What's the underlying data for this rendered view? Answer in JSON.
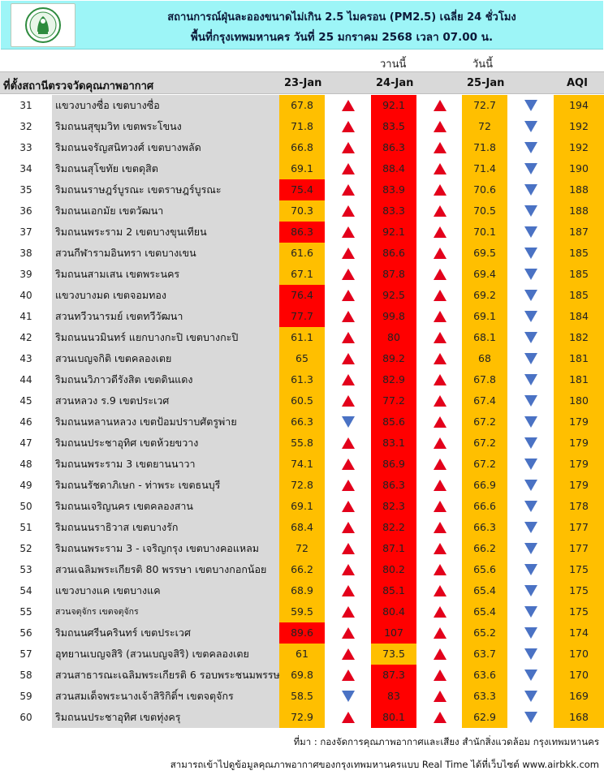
{
  "header": {
    "logo_icon": "city-seal-logo",
    "title_line1": "สถานการณ์ฝุ่นละอองขนาดไม่เกิน 2.5 ไมครอน (PM2.5) เฉลี่ย 24 ชั่วโมง",
    "title_line2": "พื้นที่กรุงเทพมหานคร วันที่ 25 มกราคม 2568 เวลา 07.00 น."
  },
  "day_labels": {
    "yesterday": "วานนี้",
    "today": "วันนี้"
  },
  "columns": {
    "station": "ที่ตั้งสถานีตรวจวัดคุณภาพอากาศ",
    "d23": "23-Jan",
    "d24": "24-Jan",
    "d25": "25-Jan",
    "aqi": "AQI"
  },
  "colors": {
    "header_bg": "#9df5f7",
    "orange": "#ffbf00",
    "red": "#ff0000",
    "up_arrow": "#e3001b",
    "down_arrow": "#4a72c4",
    "name_bg": "#d9d9d9"
  },
  "rows": [
    {
      "no": "31",
      "name": "แขวงบางซื่อ เขตบางซื่อ",
      "v23": "67.8",
      "c23": "orange",
      "a23": "up",
      "v24": "92.1",
      "c24": "red",
      "a24": "up",
      "v25": "72.7",
      "c25": "orange",
      "a25": "down",
      "aqi": "194"
    },
    {
      "no": "32",
      "name": "ริมถนนสุขุมวิท เขตพระโขนง",
      "v23": "71.8",
      "c23": "orange",
      "a23": "up",
      "v24": "83.5",
      "c24": "red",
      "a24": "up",
      "v25": "72",
      "c25": "orange",
      "a25": "down",
      "aqi": "192"
    },
    {
      "no": "33",
      "name": "ริมถนนจรัญสนิทวงศ์ เขตบางพลัด",
      "v23": "66.8",
      "c23": "orange",
      "a23": "up",
      "v24": "86.3",
      "c24": "red",
      "a24": "up",
      "v25": "71.8",
      "c25": "orange",
      "a25": "down",
      "aqi": "192"
    },
    {
      "no": "34",
      "name": "ริมถนนสุโขทัย เขตดุสิต",
      "v23": "69.1",
      "c23": "orange",
      "a23": "up",
      "v24": "88.4",
      "c24": "red",
      "a24": "up",
      "v25": "71.4",
      "c25": "orange",
      "a25": "down",
      "aqi": "190"
    },
    {
      "no": "35",
      "name": "ริมถนนราษฎร์บูรณะ เขตราษฎร์บูรณะ",
      "v23": "75.4",
      "c23": "red",
      "a23": "up",
      "v24": "83.9",
      "c24": "red",
      "a24": "up",
      "v25": "70.6",
      "c25": "orange",
      "a25": "down",
      "aqi": "188"
    },
    {
      "no": "36",
      "name": "ริมถนนเอกมัย เขตวัฒนา",
      "v23": "70.3",
      "c23": "orange",
      "a23": "up",
      "v24": "83.3",
      "c24": "red",
      "a24": "up",
      "v25": "70.5",
      "c25": "orange",
      "a25": "down",
      "aqi": "188"
    },
    {
      "no": "37",
      "name": "ริมถนนพระราม 2 เขตบางขุนเทียน",
      "v23": "86.3",
      "c23": "red",
      "a23": "up",
      "v24": "92.1",
      "c24": "red",
      "a24": "up",
      "v25": "70.1",
      "c25": "orange",
      "a25": "down",
      "aqi": "187"
    },
    {
      "no": "38",
      "name": "สวนกีฬารามอินทรา เขตบางเขน",
      "v23": "61.6",
      "c23": "orange",
      "a23": "up",
      "v24": "86.6",
      "c24": "red",
      "a24": "up",
      "v25": "69.5",
      "c25": "orange",
      "a25": "down",
      "aqi": "185"
    },
    {
      "no": "39",
      "name": "ริมถนนสามเสน เขตพระนคร",
      "v23": "67.1",
      "c23": "orange",
      "a23": "up",
      "v24": "87.8",
      "c24": "red",
      "a24": "up",
      "v25": "69.4",
      "c25": "orange",
      "a25": "down",
      "aqi": "185"
    },
    {
      "no": "40",
      "name": "แขวงบางมด เขตจอมทอง",
      "v23": "76.4",
      "c23": "red",
      "a23": "up",
      "v24": "92.5",
      "c24": "red",
      "a24": "up",
      "v25": "69.2",
      "c25": "orange",
      "a25": "down",
      "aqi": "185"
    },
    {
      "no": "41",
      "name": "สวนทวีวนารมย์ เขตทวีวัฒนา",
      "v23": "77.7",
      "c23": "red",
      "a23": "up",
      "v24": "99.8",
      "c24": "red",
      "a24": "up",
      "v25": "69.1",
      "c25": "orange",
      "a25": "down",
      "aqi": "184"
    },
    {
      "no": "42",
      "name": "ริมถนนนวมินทร์ แยกบางกะปิ เขตบางกะปิ",
      "v23": "61.1",
      "c23": "orange",
      "a23": "up",
      "v24": "80",
      "c24": "red",
      "a24": "up",
      "v25": "68.1",
      "c25": "orange",
      "a25": "down",
      "aqi": "182"
    },
    {
      "no": "43",
      "name": "สวนเบญจกิติ เขตคลองเตย",
      "v23": "65",
      "c23": "orange",
      "a23": "up",
      "v24": "89.2",
      "c24": "red",
      "a24": "up",
      "v25": "68",
      "c25": "orange",
      "a25": "down",
      "aqi": "181"
    },
    {
      "no": "44",
      "name": "ริมถนนวิภาวดีรังสิต เขตดินแดง",
      "v23": "61.3",
      "c23": "orange",
      "a23": "up",
      "v24": "82.9",
      "c24": "red",
      "a24": "up",
      "v25": "67.8",
      "c25": "orange",
      "a25": "down",
      "aqi": "181"
    },
    {
      "no": "45",
      "name": "สวนหลวง ร.9 เขตประเวศ",
      "v23": "60.5",
      "c23": "orange",
      "a23": "up",
      "v24": "77.2",
      "c24": "red",
      "a24": "up",
      "v25": "67.4",
      "c25": "orange",
      "a25": "down",
      "aqi": "180"
    },
    {
      "no": "46",
      "name": "ริมถนนหลานหลวง เขตป้อมปราบศัตรูพ่าย",
      "v23": "66.3",
      "c23": "orange",
      "a23": "down",
      "v24": "85.6",
      "c24": "red",
      "a24": "up",
      "v25": "67.2",
      "c25": "orange",
      "a25": "down",
      "aqi": "179"
    },
    {
      "no": "47",
      "name": "ริมถนนประชาอุทิศ เขตห้วยขวาง",
      "v23": "55.8",
      "c23": "orange",
      "a23": "up",
      "v24": "83.1",
      "c24": "red",
      "a24": "up",
      "v25": "67.2",
      "c25": "orange",
      "a25": "down",
      "aqi": "179"
    },
    {
      "no": "48",
      "name": "ริมถนนพระราม 3 เขตยานนาวา",
      "v23": "74.1",
      "c23": "orange",
      "a23": "up",
      "v24": "86.9",
      "c24": "red",
      "a24": "up",
      "v25": "67.2",
      "c25": "orange",
      "a25": "down",
      "aqi": "179"
    },
    {
      "no": "49",
      "name": "ริมถนนรัชดาภิเษก - ท่าพระ เขตธนบุรี",
      "v23": "72.8",
      "c23": "orange",
      "a23": "up",
      "v24": "86.3",
      "c24": "red",
      "a24": "up",
      "v25": "66.9",
      "c25": "orange",
      "a25": "down",
      "aqi": "179"
    },
    {
      "no": "50",
      "name": "ริมถนนเจริญนคร เขตคลองสาน",
      "v23": "69.1",
      "c23": "orange",
      "a23": "up",
      "v24": "82.3",
      "c24": "red",
      "a24": "up",
      "v25": "66.6",
      "c25": "orange",
      "a25": "down",
      "aqi": "178"
    },
    {
      "no": "51",
      "name": "ริมถนนนราธิวาส เขตบางรัก",
      "v23": "68.4",
      "c23": "orange",
      "a23": "up",
      "v24": "82.2",
      "c24": "red",
      "a24": "up",
      "v25": "66.3",
      "c25": "orange",
      "a25": "down",
      "aqi": "177"
    },
    {
      "no": "52",
      "name": "ริมถนนพระราม 3 - เจริญกรุง เขตบางคอแหลม",
      "v23": "72",
      "c23": "orange",
      "a23": "up",
      "v24": "87.1",
      "c24": "red",
      "a24": "up",
      "v25": "66.2",
      "c25": "orange",
      "a25": "down",
      "aqi": "177"
    },
    {
      "no": "53",
      "name": "สวนเฉลิมพระเกียรติ 80 พรรษา เขตบางกอกน้อย",
      "v23": "66.2",
      "c23": "orange",
      "a23": "up",
      "v24": "80.2",
      "c24": "red",
      "a24": "up",
      "v25": "65.6",
      "c25": "orange",
      "a25": "down",
      "aqi": "175"
    },
    {
      "no": "54",
      "name": "แขวงบางแค เขตบางแค",
      "v23": "68.9",
      "c23": "orange",
      "a23": "up",
      "v24": "85.1",
      "c24": "red",
      "a24": "up",
      "v25": "65.4",
      "c25": "orange",
      "a25": "down",
      "aqi": "175"
    },
    {
      "no": "55",
      "name": "สวนจตุจักร เขตจตุจักร",
      "small": true,
      "v23": "59.5",
      "c23": "orange",
      "a23": "up",
      "v24": "80.4",
      "c24": "red",
      "a24": "up",
      "v25": "65.4",
      "c25": "orange",
      "a25": "down",
      "aqi": "175"
    },
    {
      "no": "56",
      "name": "ริมถนนศรีนครินทร์ เขตประเวศ",
      "v23": "89.6",
      "c23": "red",
      "a23": "up",
      "v24": "107",
      "c24": "red",
      "a24": "up",
      "v25": "65.2",
      "c25": "orange",
      "a25": "down",
      "aqi": "174"
    },
    {
      "no": "57",
      "name": "อุทยานเบญจสิริ (สวนเบญจสิริ) เขตคลองเตย",
      "v23": "61",
      "c23": "orange",
      "a23": "up",
      "v24": "73.5",
      "c24": "orange",
      "a24": "up",
      "v25": "63.7",
      "c25": "orange",
      "a25": "down",
      "aqi": "170"
    },
    {
      "no": "58",
      "name": "สวนสาธารณะเฉลิมพระเกียรติ 6 รอบพระชนมพรรษา",
      "v23": "69.8",
      "c23": "orange",
      "a23": "up",
      "v24": "87.3",
      "c24": "red",
      "a24": "up",
      "v25": "63.6",
      "c25": "orange",
      "a25": "down",
      "aqi": "170"
    },
    {
      "no": "59",
      "name": "สวนสมเด็จพระนางเจ้าสิริกิติ์ฯ เขตจตุจักร",
      "v23": "58.5",
      "c23": "orange",
      "a23": "down",
      "v24": "83",
      "c24": "red",
      "a24": "up",
      "v25": "63.3",
      "c25": "orange",
      "a25": "down",
      "aqi": "169"
    },
    {
      "no": "60",
      "name": "ริมถนนประชาอุทิศ เขตทุ่งครุ",
      "v23": "72.9",
      "c23": "orange",
      "a23": "up",
      "v24": "80.1",
      "c24": "red",
      "a24": "up",
      "v25": "62.9",
      "c25": "orange",
      "a25": "down",
      "aqi": "168"
    }
  ],
  "footer": {
    "source": "ที่มา : กองจัดการคุณภาพอากาศและเสียง สำนักสิ่งแวดล้อม กรุงเทพมหานคร",
    "website_note": "สามารถเข้าไปดูข้อมูลคุณภาพอากาศของกรุงเทพมหานครแบบ Real Time ได้ที่เว็บไซต์ www.airbkk.com"
  }
}
